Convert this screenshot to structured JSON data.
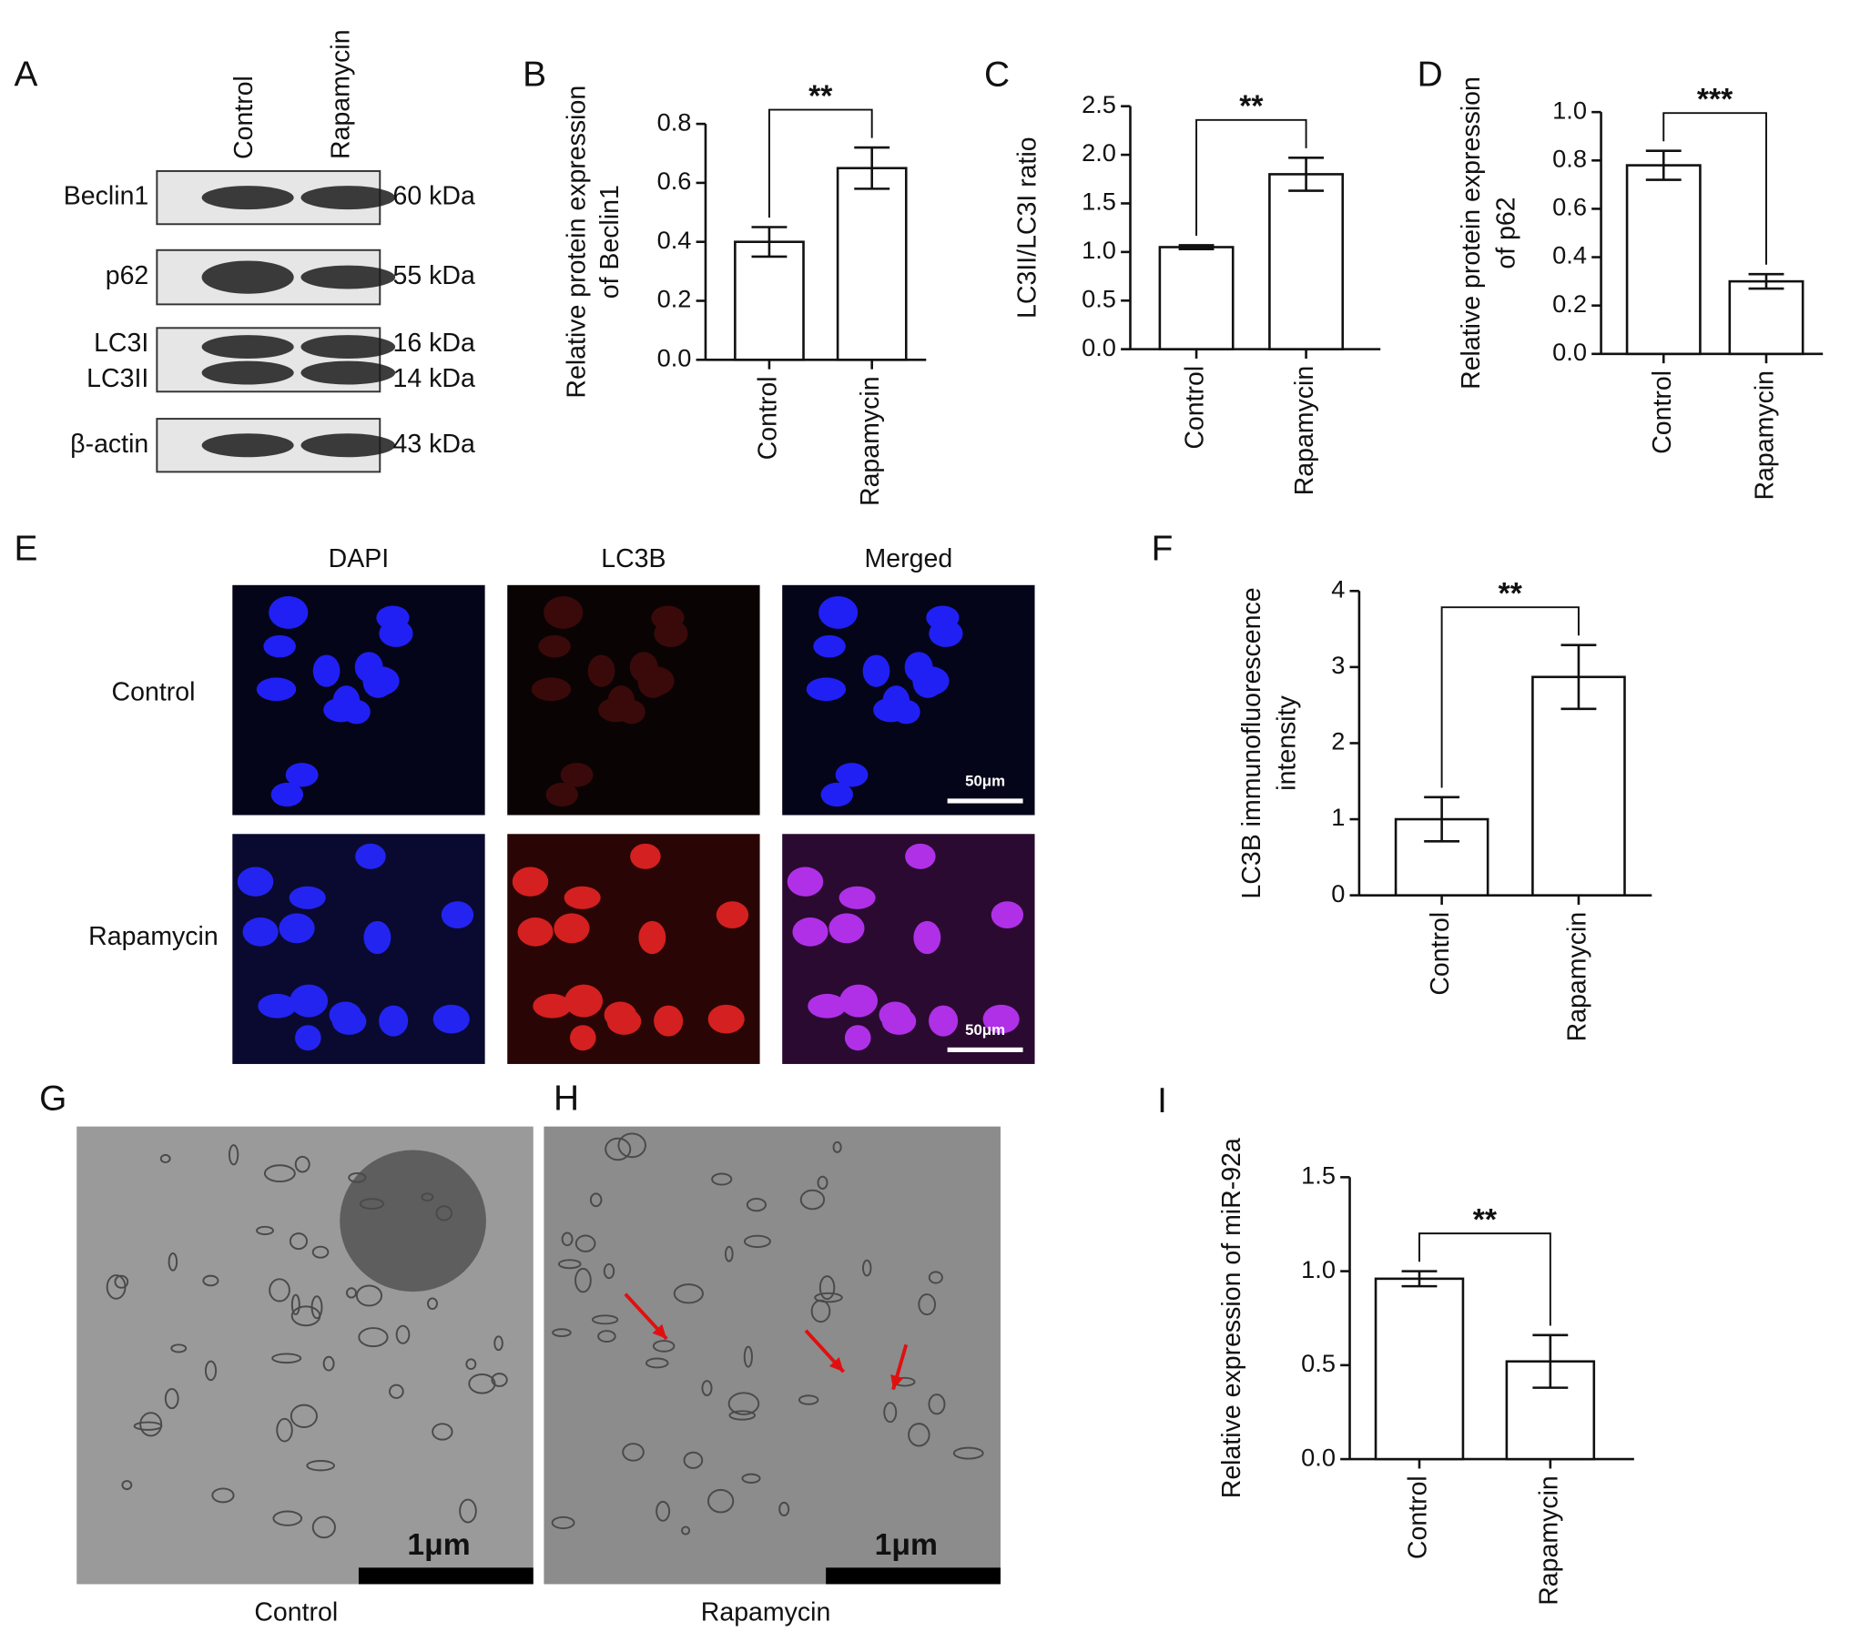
{
  "panel_labels": [
    "A",
    "B",
    "C",
    "D",
    "E",
    "F",
    "G",
    "H",
    "I"
  ],
  "western_blot": {
    "columns": [
      "Control",
      "Rapamycin"
    ],
    "rows": [
      {
        "proteins": [
          "Beclin1"
        ],
        "sizes": [
          "60 kDa"
        ]
      },
      {
        "proteins": [
          "p62"
        ],
        "sizes": [
          "55 kDa"
        ]
      },
      {
        "proteins": [
          "LC3I",
          "LC3II"
        ],
        "sizes": [
          "16 kDa",
          "14 kDa"
        ]
      },
      {
        "proteins": [
          "β-actin"
        ],
        "sizes": [
          "43 kDa"
        ]
      }
    ]
  },
  "immunofluorescence": {
    "columns": [
      "DAPI",
      "LC3B",
      "Merged"
    ],
    "rows": [
      {
        "label": "Control",
        "scale_bar": "50μm"
      },
      {
        "label": "Rapamycin",
        "scale_bar": "50μm"
      }
    ]
  },
  "electron_microscopy": {
    "panels": [
      {
        "caption": "Control",
        "scale_bar": "1μm"
      },
      {
        "caption": "Rapamycin",
        "scale_bar": "1μm"
      }
    ]
  },
  "chart_data": [
    {
      "type": "bar",
      "ylabel": [
        "Relative protein expression",
        "of Beclin1"
      ],
      "categories": [
        "Control",
        "Rapamycin"
      ],
      "values": [
        0.4,
        0.65
      ],
      "errors": [
        0.05,
        0.07
      ],
      "significance": "**",
      "color": "#ffffff",
      "ylim": [
        0,
        0.8
      ],
      "yticks": [
        {
          "value": 0,
          "label": "0.0"
        },
        0.2,
        0.4,
        0.6,
        0.8
      ]
    },
    {
      "type": "bar",
      "ylabel": [
        "LC3II/LC3I ratio"
      ],
      "categories": [
        "Control",
        "Rapamycin"
      ],
      "values": [
        1.05,
        1.8
      ],
      "errors": [
        0.02,
        0.17
      ],
      "significance": "**",
      "color": "#ffffff",
      "ylim": [
        0,
        2.5
      ],
      "yticks": [
        {
          "value": 0,
          "label": "0.0"
        },
        0.5,
        {
          "value": 1,
          "label": "1.0"
        },
        1.5,
        {
          "value": 2,
          "label": "2.0"
        },
        2.5
      ]
    },
    {
      "type": "bar",
      "ylabel": [
        "Relative protein expression",
        "of p62"
      ],
      "categories": [
        "Control",
        "Rapamycin"
      ],
      "values": [
        0.78,
        0.3
      ],
      "errors": [
        0.06,
        0.03
      ],
      "significance": "***",
      "color": "#ffffff",
      "ylim": [
        0,
        1.0
      ],
      "yticks": [
        {
          "value": 0,
          "label": "0.0"
        },
        0.2,
        0.4,
        0.6,
        0.8,
        {
          "value": 1,
          "label": "1.0"
        }
      ]
    },
    {
      "type": "bar",
      "ylabel": [
        "LC3B immunofluorescence",
        "intensity"
      ],
      "categories": [
        "Control",
        "Rapamycin"
      ],
      "values": [
        1.0,
        2.87
      ],
      "errors": [
        0.29,
        0.42
      ],
      "significance": "**",
      "color": "#ffffff",
      "ylim": [
        0,
        4
      ],
      "yticks": [
        0,
        1,
        2,
        3,
        4
      ]
    },
    {
      "type": "bar",
      "ylabel": [
        "Relative expression of miR-92a"
      ],
      "categories": [
        "Control",
        "Rapamycin"
      ],
      "values": [
        0.96,
        0.52
      ],
      "errors": [
        0.04,
        0.14
      ],
      "significance": "**",
      "color": "#ffffff",
      "ylim": [
        0,
        1.5
      ],
      "yticks": [
        {
          "value": 0,
          "label": "0.0"
        },
        0.5,
        {
          "value": 1,
          "label": "1.0"
        },
        1.5
      ]
    }
  ]
}
